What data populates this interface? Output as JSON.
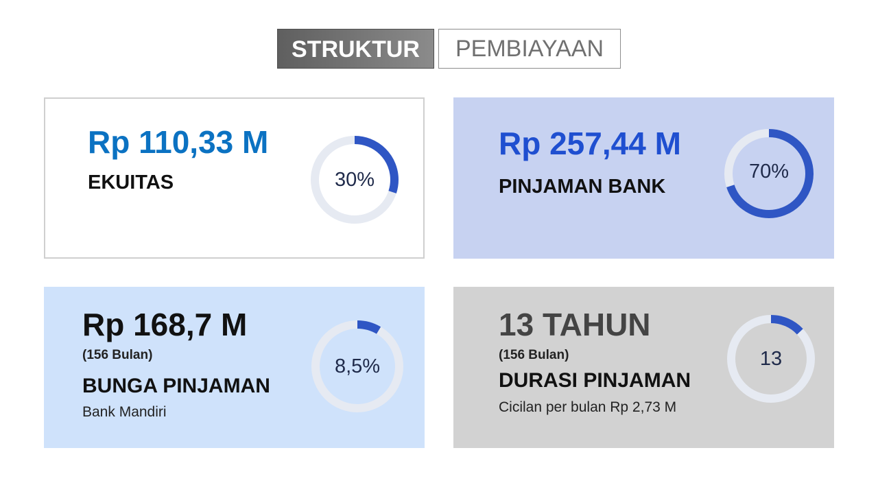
{
  "title": {
    "left": "STRUKTUR",
    "right": "PEMBIAYAAN"
  },
  "colors": {
    "ring_fill": "#2f56c4",
    "ring_track": "#e6eaf2",
    "amount_blue_light": "#0b72c2",
    "amount_blue_dark": "#1f4fd0",
    "amount_black": "#111111",
    "amount_gray": "#444444"
  },
  "cards": [
    {
      "amount": "Rp 110,33 M",
      "sub": "",
      "label": "EKUITAS",
      "note": "",
      "ring_text": "30%",
      "ring_fraction": 0.3
    },
    {
      "amount": "Rp 257,44 M",
      "sub": "",
      "label": "PINJAMAN BANK",
      "note": "",
      "ring_text": "70%",
      "ring_fraction": 0.7
    },
    {
      "amount": "Rp 168,7 M",
      "sub": "(156 Bulan)",
      "label": "BUNGA PINJAMAN",
      "note": "Bank Mandiri",
      "ring_text": "8,5%",
      "ring_fraction": 0.085
    },
    {
      "amount": "13 TAHUN",
      "sub": "(156 Bulan)",
      "label": "DURASI PINJAMAN",
      "note": "Cicilan per bulan Rp 2,73 M",
      "ring_text": "13",
      "ring_fraction": 0.13
    }
  ]
}
